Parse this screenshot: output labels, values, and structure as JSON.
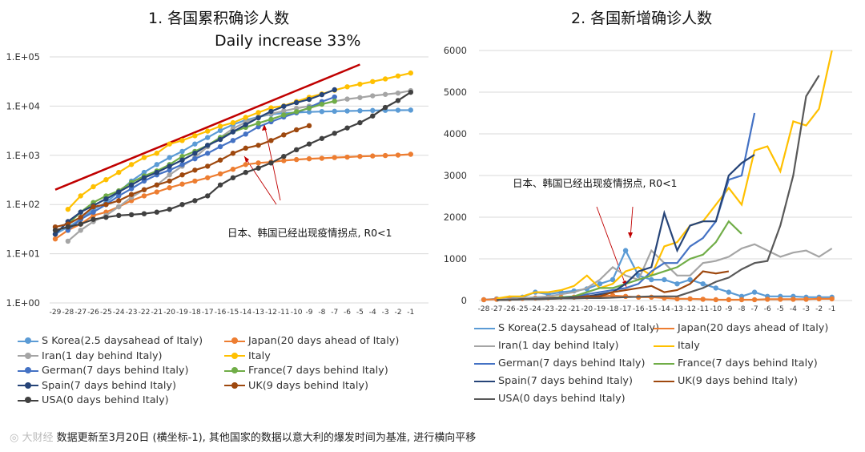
{
  "charts": {
    "left": {
      "title": "1.  各国累积确诊人数",
      "annotation_banner": "Daily increase 33%",
      "annotation_text": "日本、韩国已经出现疫情拐点, R0<1"
    },
    "right": {
      "title": "2.  各国新增确诊人数",
      "annotation_text": "日本、韩国已经出现疫情拐点, R0<1"
    }
  },
  "footer": {
    "text": "数据更新至3月20日 (横坐标-1), 其他国家的数据以意大利的爆发时间为基准, 进行横向平移"
  },
  "chart_data": [
    {
      "type": "line",
      "title": "1.  各国累积确诊人数",
      "y_scale": "log",
      "ylim": [
        1,
        100000
      ],
      "y_tick_labels": [
        "1.E+00",
        "1.E+01",
        "1.E+02",
        "1.E+03",
        "1.E+04",
        "1.E+05"
      ],
      "x": [
        -29,
        -28,
        -27,
        -26,
        -25,
        -24,
        -23,
        -22,
        -21,
        -20,
        -19,
        -18,
        -17,
        -16,
        -15,
        -14,
        -13,
        -12,
        -11,
        -10,
        -9,
        -8,
        -7,
        -6,
        -5,
        -4,
        -3,
        -2,
        -1
      ],
      "markers": true,
      "legend": "bottom",
      "annotation": "Daily increase 33%",
      "reference_line": {
        "color": "#c00000",
        "from": [
          -29,
          200
        ],
        "to": [
          -5,
          70000
        ]
      },
      "series": [
        {
          "name": "S Korea(2.5 daysahead of Italy)",
          "color": "#5b9bd5",
          "values": [
            25,
            35,
            50,
            80,
            110,
            180,
            300,
            450,
            650,
            900,
            1200,
            1700,
            2300,
            3200,
            4200,
            5200,
            6000,
            6800,
            7200,
            7400,
            7600,
            7750,
            7850,
            7950,
            8050,
            8150,
            8200,
            8250,
            8300
          ]
        },
        {
          "name": "Japan(20 days ahead of Italy)",
          "color": "#ed7d31",
          "values": [
            20,
            30,
            40,
            60,
            70,
            90,
            120,
            150,
            180,
            220,
            260,
            300,
            350,
            420,
            520,
            650,
            700,
            730,
            780,
            820,
            850,
            870,
            900,
            920,
            950,
            970,
            990,
            1010,
            1050
          ]
        },
        {
          "name": "Iran(1 day behind Italy)",
          "color": "#a5a5a5",
          "values": [
            null,
            18,
            30,
            45,
            60,
            90,
            140,
            200,
            250,
            400,
            600,
            900,
            1500,
            2300,
            3500,
            4700,
            6000,
            7000,
            8000,
            9000,
            10000,
            11000,
            12500,
            13900,
            14900,
            16200,
            17300,
            18400,
            20600
          ]
        },
        {
          "name": "Italy",
          "color": "#ffc000",
          "values": [
            null,
            80,
            150,
            230,
            320,
            450,
            650,
            900,
            1100,
            1700,
            2000,
            2500,
            3100,
            3900,
            4600,
            5900,
            7400,
            9200,
            10100,
            12400,
            15100,
            17700,
            21100,
            24700,
            27900,
            31500,
            35700,
            41000,
            47000
          ]
        },
        {
          "name": "German(7 days behind Italy)",
          "color": "#4472c4",
          "values": [
            null,
            30,
            50,
            70,
            100,
            150,
            210,
            300,
            400,
            500,
            650,
            850,
            1100,
            1500,
            2000,
            2700,
            3800,
            4800,
            6000,
            7300,
            9300,
            12300,
            15300,
            null,
            null,
            null,
            null,
            null,
            null
          ]
        },
        {
          "name": "France(7 days behind Italy)",
          "color": "#70ad47",
          "values": [
            null,
            40,
            70,
            110,
            150,
            190,
            280,
            380,
            480,
            650,
            950,
            1200,
            1600,
            2300,
            3000,
            3700,
            4500,
            5400,
            6600,
            7700,
            9100,
            10900,
            12600,
            null,
            null,
            null,
            null,
            null,
            null
          ]
        },
        {
          "name": "Spain(7 days behind Italy)",
          "color": "#264478",
          "values": [
            25,
            45,
            70,
            95,
            130,
            180,
            250,
            350,
            450,
            600,
            800,
            1100,
            1600,
            2100,
            3000,
            4200,
            5800,
            7800,
            9900,
            11800,
            13700,
            17100,
            21500,
            null,
            null,
            null,
            null,
            null,
            null
          ]
        },
        {
          "name": "UK(9 days behind Italy)",
          "color": "#9e480e",
          "values": [
            35,
            40,
            55,
            90,
            100,
            120,
            160,
            200,
            250,
            300,
            400,
            500,
            600,
            800,
            1100,
            1400,
            1600,
            2000,
            2600,
            3300,
            4000,
            null,
            null,
            null,
            null,
            null,
            null,
            null,
            null
          ]
        },
        {
          "name": "USA(0 days behind Italy)",
          "color": "#404040",
          "values": [
            30,
            35,
            40,
            50,
            55,
            60,
            62,
            65,
            70,
            80,
            100,
            120,
            150,
            250,
            350,
            450,
            550,
            700,
            950,
            1300,
            1700,
            2200,
            2800,
            3600,
            4600,
            6300,
            9400,
            13000,
            19100
          ]
        }
      ]
    },
    {
      "type": "line",
      "title": "2.  各国新增确诊人数",
      "ylim": [
        0,
        6000
      ],
      "y_ticks": [
        0,
        1000,
        2000,
        3000,
        4000,
        5000,
        6000
      ],
      "x": [
        -28,
        -27,
        -26,
        -25,
        -24,
        -23,
        -22,
        -21,
        -20,
        -19,
        -18,
        -17,
        -16,
        -15,
        -14,
        -13,
        -12,
        -11,
        -10,
        -9,
        -8,
        -7,
        -6,
        -5,
        -4,
        -3,
        -2,
        -1
      ],
      "markers": "S Korea and Japan only",
      "legend": "bottom",
      "series": [
        {
          "name": "S Korea(2.5 daysahead of Italy)",
          "color": "#5b9bd5",
          "values": [
            20,
            40,
            60,
            80,
            200,
            150,
            200,
            230,
            280,
            400,
            500,
            1200,
            600,
            500,
            500,
            400,
            500,
            400,
            300,
            200,
            100,
            200,
            100,
            100,
            100,
            80,
            80,
            80
          ]
        },
        {
          "name": "Japan(20 days ahead of Italy)",
          "color": "#ed7d31",
          "values": [
            20,
            30,
            40,
            50,
            60,
            70,
            80,
            80,
            90,
            100,
            120,
            100,
            80,
            80,
            60,
            40,
            40,
            30,
            20,
            20,
            20,
            20,
            30,
            30,
            30,
            30,
            40,
            40
          ]
        },
        {
          "name": "Iran(1 day behind Italy)",
          "color": "#a5a5a5",
          "values": [
            null,
            20,
            40,
            60,
            80,
            100,
            150,
            200,
            300,
            500,
            800,
            600,
            500,
            1200,
            900,
            600,
            600,
            900,
            950,
            1050,
            1250,
            1350,
            1200,
            1050,
            1150,
            1200,
            1050,
            1250
          ]
        },
        {
          "name": "Italy",
          "color": "#ffc000",
          "values": [
            null,
            50,
            100,
            100,
            200,
            200,
            250,
            350,
            600,
            300,
            400,
            700,
            800,
            600,
            1300,
            1400,
            1800,
            1900,
            2300,
            2700,
            2300,
            3600,
            3700,
            3100,
            4300,
            4200,
            4600,
            6000
          ]
        },
        {
          "name": "German(7 days behind Italy)",
          "color": "#4472c4",
          "values": [
            null,
            10,
            20,
            30,
            40,
            50,
            60,
            80,
            150,
            200,
            250,
            300,
            400,
            700,
            900,
            900,
            1300,
            1500,
            1900,
            2900,
            3000,
            4500,
            null,
            null,
            null,
            null,
            null,
            null
          ]
        },
        {
          "name": "France(7 days behind Italy)",
          "color": "#70ad47",
          "values": [
            null,
            10,
            20,
            30,
            40,
            50,
            80,
            100,
            200,
            300,
            300,
            400,
            500,
            600,
            700,
            800,
            1000,
            1100,
            1400,
            1900,
            1600,
            null,
            null,
            null,
            null,
            null,
            null,
            null
          ]
        },
        {
          "name": "Spain(7 days behind Italy)",
          "color": "#264478",
          "values": [
            null,
            10,
            20,
            30,
            40,
            50,
            60,
            80,
            100,
            150,
            200,
            400,
            700,
            800,
            2100,
            1200,
            1800,
            1900,
            1900,
            3000,
            3300,
            3500,
            null,
            null,
            null,
            null,
            null,
            null
          ]
        },
        {
          "name": "UK(9 days behind Italy)",
          "color": "#9e480e",
          "values": [
            null,
            10,
            20,
            30,
            30,
            40,
            50,
            60,
            100,
            100,
            200,
            250,
            300,
            350,
            200,
            250,
            400,
            700,
            650,
            700,
            null,
            null,
            null,
            null,
            null,
            null,
            null,
            null
          ]
        },
        {
          "name": "USA(0 days behind Italy)",
          "color": "#595959",
          "values": [
            null,
            10,
            20,
            30,
            30,
            40,
            50,
            50,
            60,
            60,
            70,
            80,
            90,
            100,
            100,
            100,
            200,
            300,
            450,
            550,
            750,
            900,
            950,
            1800,
            3000,
            4900,
            5400,
            null
          ]
        }
      ]
    }
  ]
}
